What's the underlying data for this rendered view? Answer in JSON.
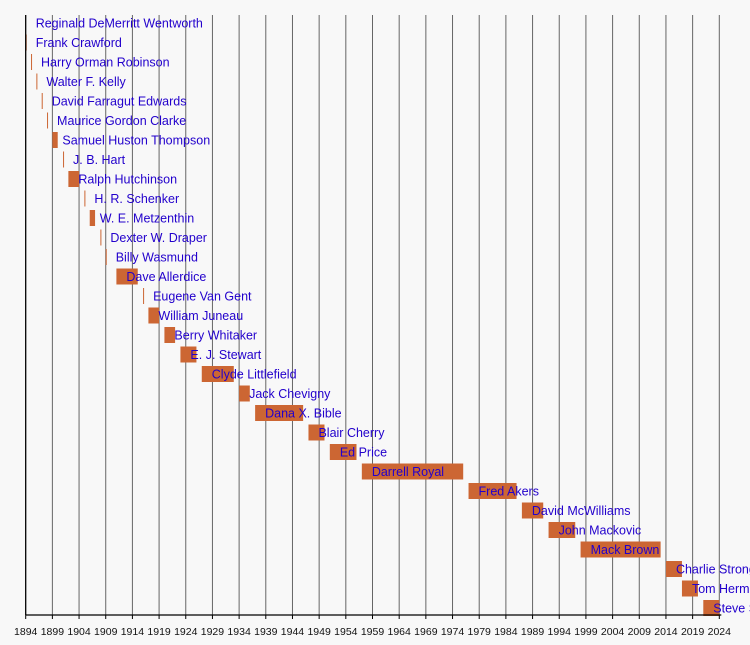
{
  "chart_data": {
    "type": "timeline",
    "title": "",
    "xlabel": "",
    "ylabel": "",
    "xlim": [
      1894,
      2024
    ],
    "x_ticks": [
      1894,
      1899,
      1904,
      1909,
      1914,
      1919,
      1924,
      1929,
      1934,
      1939,
      1944,
      1949,
      1954,
      1959,
      1964,
      1969,
      1974,
      1979,
      1984,
      1989,
      1994,
      1999,
      2004,
      2009,
      2014,
      2019,
      2024
    ],
    "grid": true,
    "colors": {
      "bar": "#CC6633",
      "label": "#2200CC",
      "grid": "#666666",
      "background": "#F8F8F8"
    },
    "rows": [
      {
        "name": "Reginald DeMerritt Wentworth",
        "start": 1893,
        "end": 1893
      },
      {
        "name": "Frank Crawford",
        "start": 1894,
        "end": 1894
      },
      {
        "name": "Harry Orman Robinson",
        "start": 1895,
        "end": 1895
      },
      {
        "name": "Walter F. Kelly",
        "start": 1896,
        "end": 1896
      },
      {
        "name": "David Farragut Edwards",
        "start": 1897,
        "end": 1897
      },
      {
        "name": "Maurice Gordon Clarke",
        "start": 1898,
        "end": 1898
      },
      {
        "name": "Samuel Huston Thompson",
        "start": 1899,
        "end": 1900
      },
      {
        "name": "J. B. Hart",
        "start": 1901,
        "end": 1901
      },
      {
        "name": "Ralph Hutchinson",
        "start": 1902,
        "end": 1904
      },
      {
        "name": "H. R. Schenker",
        "start": 1905,
        "end": 1905
      },
      {
        "name": "W. E. Metzenthin",
        "start": 1906,
        "end": 1907
      },
      {
        "name": "Dexter W. Draper",
        "start": 1908,
        "end": 1908
      },
      {
        "name": "Billy Wasmund",
        "start": 1909,
        "end": 1909
      },
      {
        "name": "Dave Allerdice",
        "start": 1911,
        "end": 1915
      },
      {
        "name": "Eugene Van Gent",
        "start": 1916,
        "end": 1916
      },
      {
        "name": "William Juneau",
        "start": 1917,
        "end": 1919
      },
      {
        "name": "Berry Whitaker",
        "start": 1920,
        "end": 1922
      },
      {
        "name": "E. J. Stewart",
        "start": 1923,
        "end": 1926
      },
      {
        "name": "Clyde Littlefield",
        "start": 1927,
        "end": 1933
      },
      {
        "name": "Jack Chevigny",
        "start": 1934,
        "end": 1936
      },
      {
        "name": "Dana X. Bible",
        "start": 1937,
        "end": 1946
      },
      {
        "name": "Blair Cherry",
        "start": 1947,
        "end": 1950
      },
      {
        "name": "Ed Price",
        "start": 1951,
        "end": 1956
      },
      {
        "name": "Darrell Royal",
        "start": 1957,
        "end": 1976
      },
      {
        "name": "Fred Akers",
        "start": 1977,
        "end": 1986
      },
      {
        "name": "David McWilliams",
        "start": 1987,
        "end": 1991
      },
      {
        "name": "John Mackovic",
        "start": 1992,
        "end": 1997
      },
      {
        "name": "Mack Brown",
        "start": 1998,
        "end": 2013
      },
      {
        "name": "Charlie Strong",
        "start": 2014,
        "end": 2017
      },
      {
        "name": "Tom Herman",
        "start": 2017,
        "end": 2020
      },
      {
        "name": "Steve Sarkisian",
        "start": 2021,
        "end": 2024
      }
    ]
  }
}
